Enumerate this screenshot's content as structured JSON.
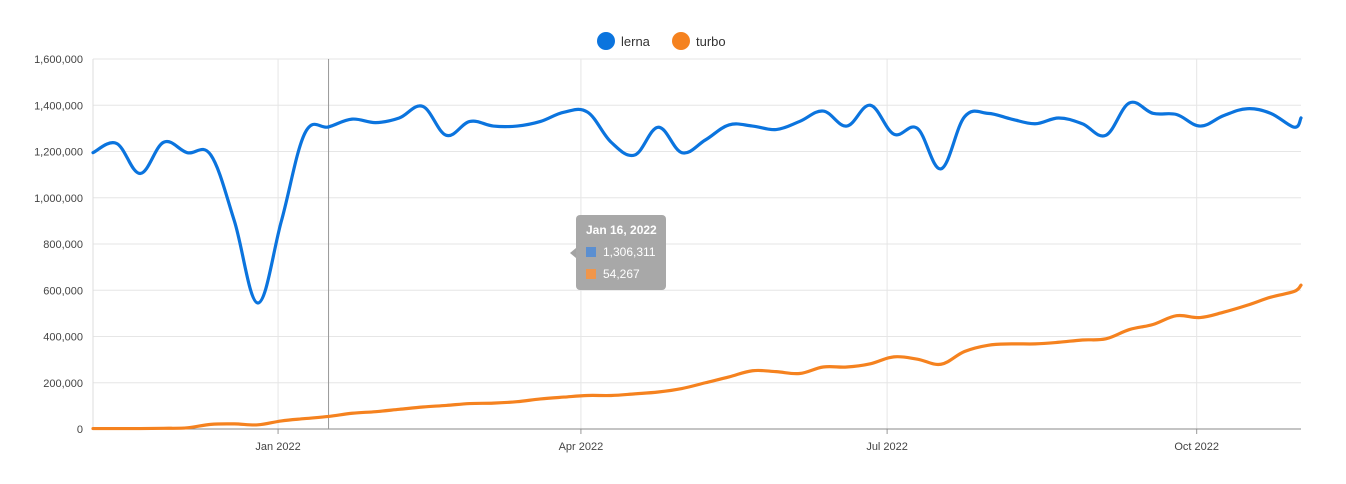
{
  "chart_data": {
    "type": "line",
    "title": "",
    "xlabel": "",
    "ylabel": "",
    "ylim": [
      0,
      1600000
    ],
    "xlim": [
      "2021-11-07",
      "2022-11-01"
    ],
    "grid": true,
    "legend_position": "top-center",
    "y_ticks": [
      "0",
      "200,000",
      "400,000",
      "600,000",
      "800,000",
      "1,000,000",
      "1,200,000",
      "1,400,000",
      "1,600,000"
    ],
    "x_ticks": [
      {
        "date": "2022-01-01",
        "label": "Jan 2022"
      },
      {
        "date": "2022-04-01",
        "label": "Apr 2022"
      },
      {
        "date": "2022-07-01",
        "label": "Jul 2022"
      },
      {
        "date": "2022-10-01",
        "label": "Oct 2022"
      }
    ],
    "series": [
      {
        "name": "lerna",
        "color": "#0b74de",
        "points": [
          [
            "2021-11-07",
            1195000
          ],
          [
            "2021-11-14",
            1235000
          ],
          [
            "2021-11-21",
            1105000
          ],
          [
            "2021-11-28",
            1240000
          ],
          [
            "2021-12-05",
            1195000
          ],
          [
            "2021-12-12",
            1185000
          ],
          [
            "2021-12-19",
            900000
          ],
          [
            "2021-12-26",
            545000
          ],
          [
            "2022-01-02",
            900000
          ],
          [
            "2022-01-09",
            1280000
          ],
          [
            "2022-01-16",
            1306311
          ],
          [
            "2022-01-23",
            1340000
          ],
          [
            "2022-01-30",
            1325000
          ],
          [
            "2022-02-06",
            1345000
          ],
          [
            "2022-02-13",
            1395000
          ],
          [
            "2022-02-20",
            1270000
          ],
          [
            "2022-02-27",
            1330000
          ],
          [
            "2022-03-06",
            1310000
          ],
          [
            "2022-03-13",
            1310000
          ],
          [
            "2022-03-20",
            1330000
          ],
          [
            "2022-03-27",
            1370000
          ],
          [
            "2022-04-03",
            1370000
          ],
          [
            "2022-04-10",
            1240000
          ],
          [
            "2022-04-17",
            1185000
          ],
          [
            "2022-04-24",
            1305000
          ],
          [
            "2022-05-01",
            1195000
          ],
          [
            "2022-05-08",
            1250000
          ],
          [
            "2022-05-15",
            1315000
          ],
          [
            "2022-05-22",
            1310000
          ],
          [
            "2022-05-29",
            1295000
          ],
          [
            "2022-06-05",
            1330000
          ],
          [
            "2022-06-12",
            1375000
          ],
          [
            "2022-06-19",
            1310000
          ],
          [
            "2022-06-26",
            1400000
          ],
          [
            "2022-07-03",
            1275000
          ],
          [
            "2022-07-10",
            1300000
          ],
          [
            "2022-07-17",
            1125000
          ],
          [
            "2022-07-24",
            1350000
          ],
          [
            "2022-07-31",
            1365000
          ],
          [
            "2022-08-07",
            1340000
          ],
          [
            "2022-08-14",
            1320000
          ],
          [
            "2022-08-21",
            1345000
          ],
          [
            "2022-08-28",
            1320000
          ],
          [
            "2022-09-04",
            1270000
          ],
          [
            "2022-09-11",
            1410000
          ],
          [
            "2022-09-18",
            1365000
          ],
          [
            "2022-09-25",
            1360000
          ],
          [
            "2022-10-02",
            1310000
          ],
          [
            "2022-10-09",
            1355000
          ],
          [
            "2022-10-16",
            1385000
          ],
          [
            "2022-10-23",
            1365000
          ],
          [
            "2022-10-30",
            1305000
          ],
          [
            "2022-11-01",
            1345000
          ]
        ]
      },
      {
        "name": "turbo",
        "color": "#f5821f",
        "points": [
          [
            "2021-11-07",
            2000
          ],
          [
            "2021-11-14",
            2000
          ],
          [
            "2021-11-21",
            2000
          ],
          [
            "2021-11-28",
            3000
          ],
          [
            "2021-12-05",
            5000
          ],
          [
            "2021-12-12",
            20000
          ],
          [
            "2021-12-19",
            22000
          ],
          [
            "2021-12-26",
            18000
          ],
          [
            "2022-01-02",
            35000
          ],
          [
            "2022-01-09",
            45000
          ],
          [
            "2022-01-16",
            54267
          ],
          [
            "2022-01-23",
            68000
          ],
          [
            "2022-01-30",
            75000
          ],
          [
            "2022-02-06",
            85000
          ],
          [
            "2022-02-13",
            95000
          ],
          [
            "2022-02-20",
            102000
          ],
          [
            "2022-02-27",
            110000
          ],
          [
            "2022-03-06",
            112000
          ],
          [
            "2022-03-13",
            118000
          ],
          [
            "2022-03-20",
            130000
          ],
          [
            "2022-03-27",
            138000
          ],
          [
            "2022-04-03",
            145000
          ],
          [
            "2022-04-10",
            145000
          ],
          [
            "2022-04-17",
            152000
          ],
          [
            "2022-04-24",
            160000
          ],
          [
            "2022-05-01",
            175000
          ],
          [
            "2022-05-08",
            200000
          ],
          [
            "2022-05-15",
            225000
          ],
          [
            "2022-05-22",
            252000
          ],
          [
            "2022-05-29",
            248000
          ],
          [
            "2022-06-05",
            240000
          ],
          [
            "2022-06-12",
            268000
          ],
          [
            "2022-06-19",
            268000
          ],
          [
            "2022-06-26",
            282000
          ],
          [
            "2022-07-03",
            312000
          ],
          [
            "2022-07-10",
            302000
          ],
          [
            "2022-07-17",
            280000
          ],
          [
            "2022-07-24",
            335000
          ],
          [
            "2022-07-31",
            362000
          ],
          [
            "2022-08-07",
            368000
          ],
          [
            "2022-08-14",
            368000
          ],
          [
            "2022-08-21",
            375000
          ],
          [
            "2022-08-28",
            385000
          ],
          [
            "2022-09-04",
            390000
          ],
          [
            "2022-09-11",
            430000
          ],
          [
            "2022-09-18",
            452000
          ],
          [
            "2022-09-25",
            490000
          ],
          [
            "2022-10-02",
            482000
          ],
          [
            "2022-10-09",
            505000
          ],
          [
            "2022-10-16",
            535000
          ],
          [
            "2022-10-23",
            570000
          ],
          [
            "2022-10-30",
            595000
          ],
          [
            "2022-11-01",
            622000
          ]
        ]
      }
    ],
    "hover": {
      "date": "2022-01-16",
      "title": "Jan 16, 2022",
      "values": [
        {
          "series": "lerna",
          "text": "1,306,311",
          "color": "#5b8fd1"
        },
        {
          "series": "turbo",
          "text": "54,267",
          "color": "#f0964b"
        }
      ]
    }
  }
}
